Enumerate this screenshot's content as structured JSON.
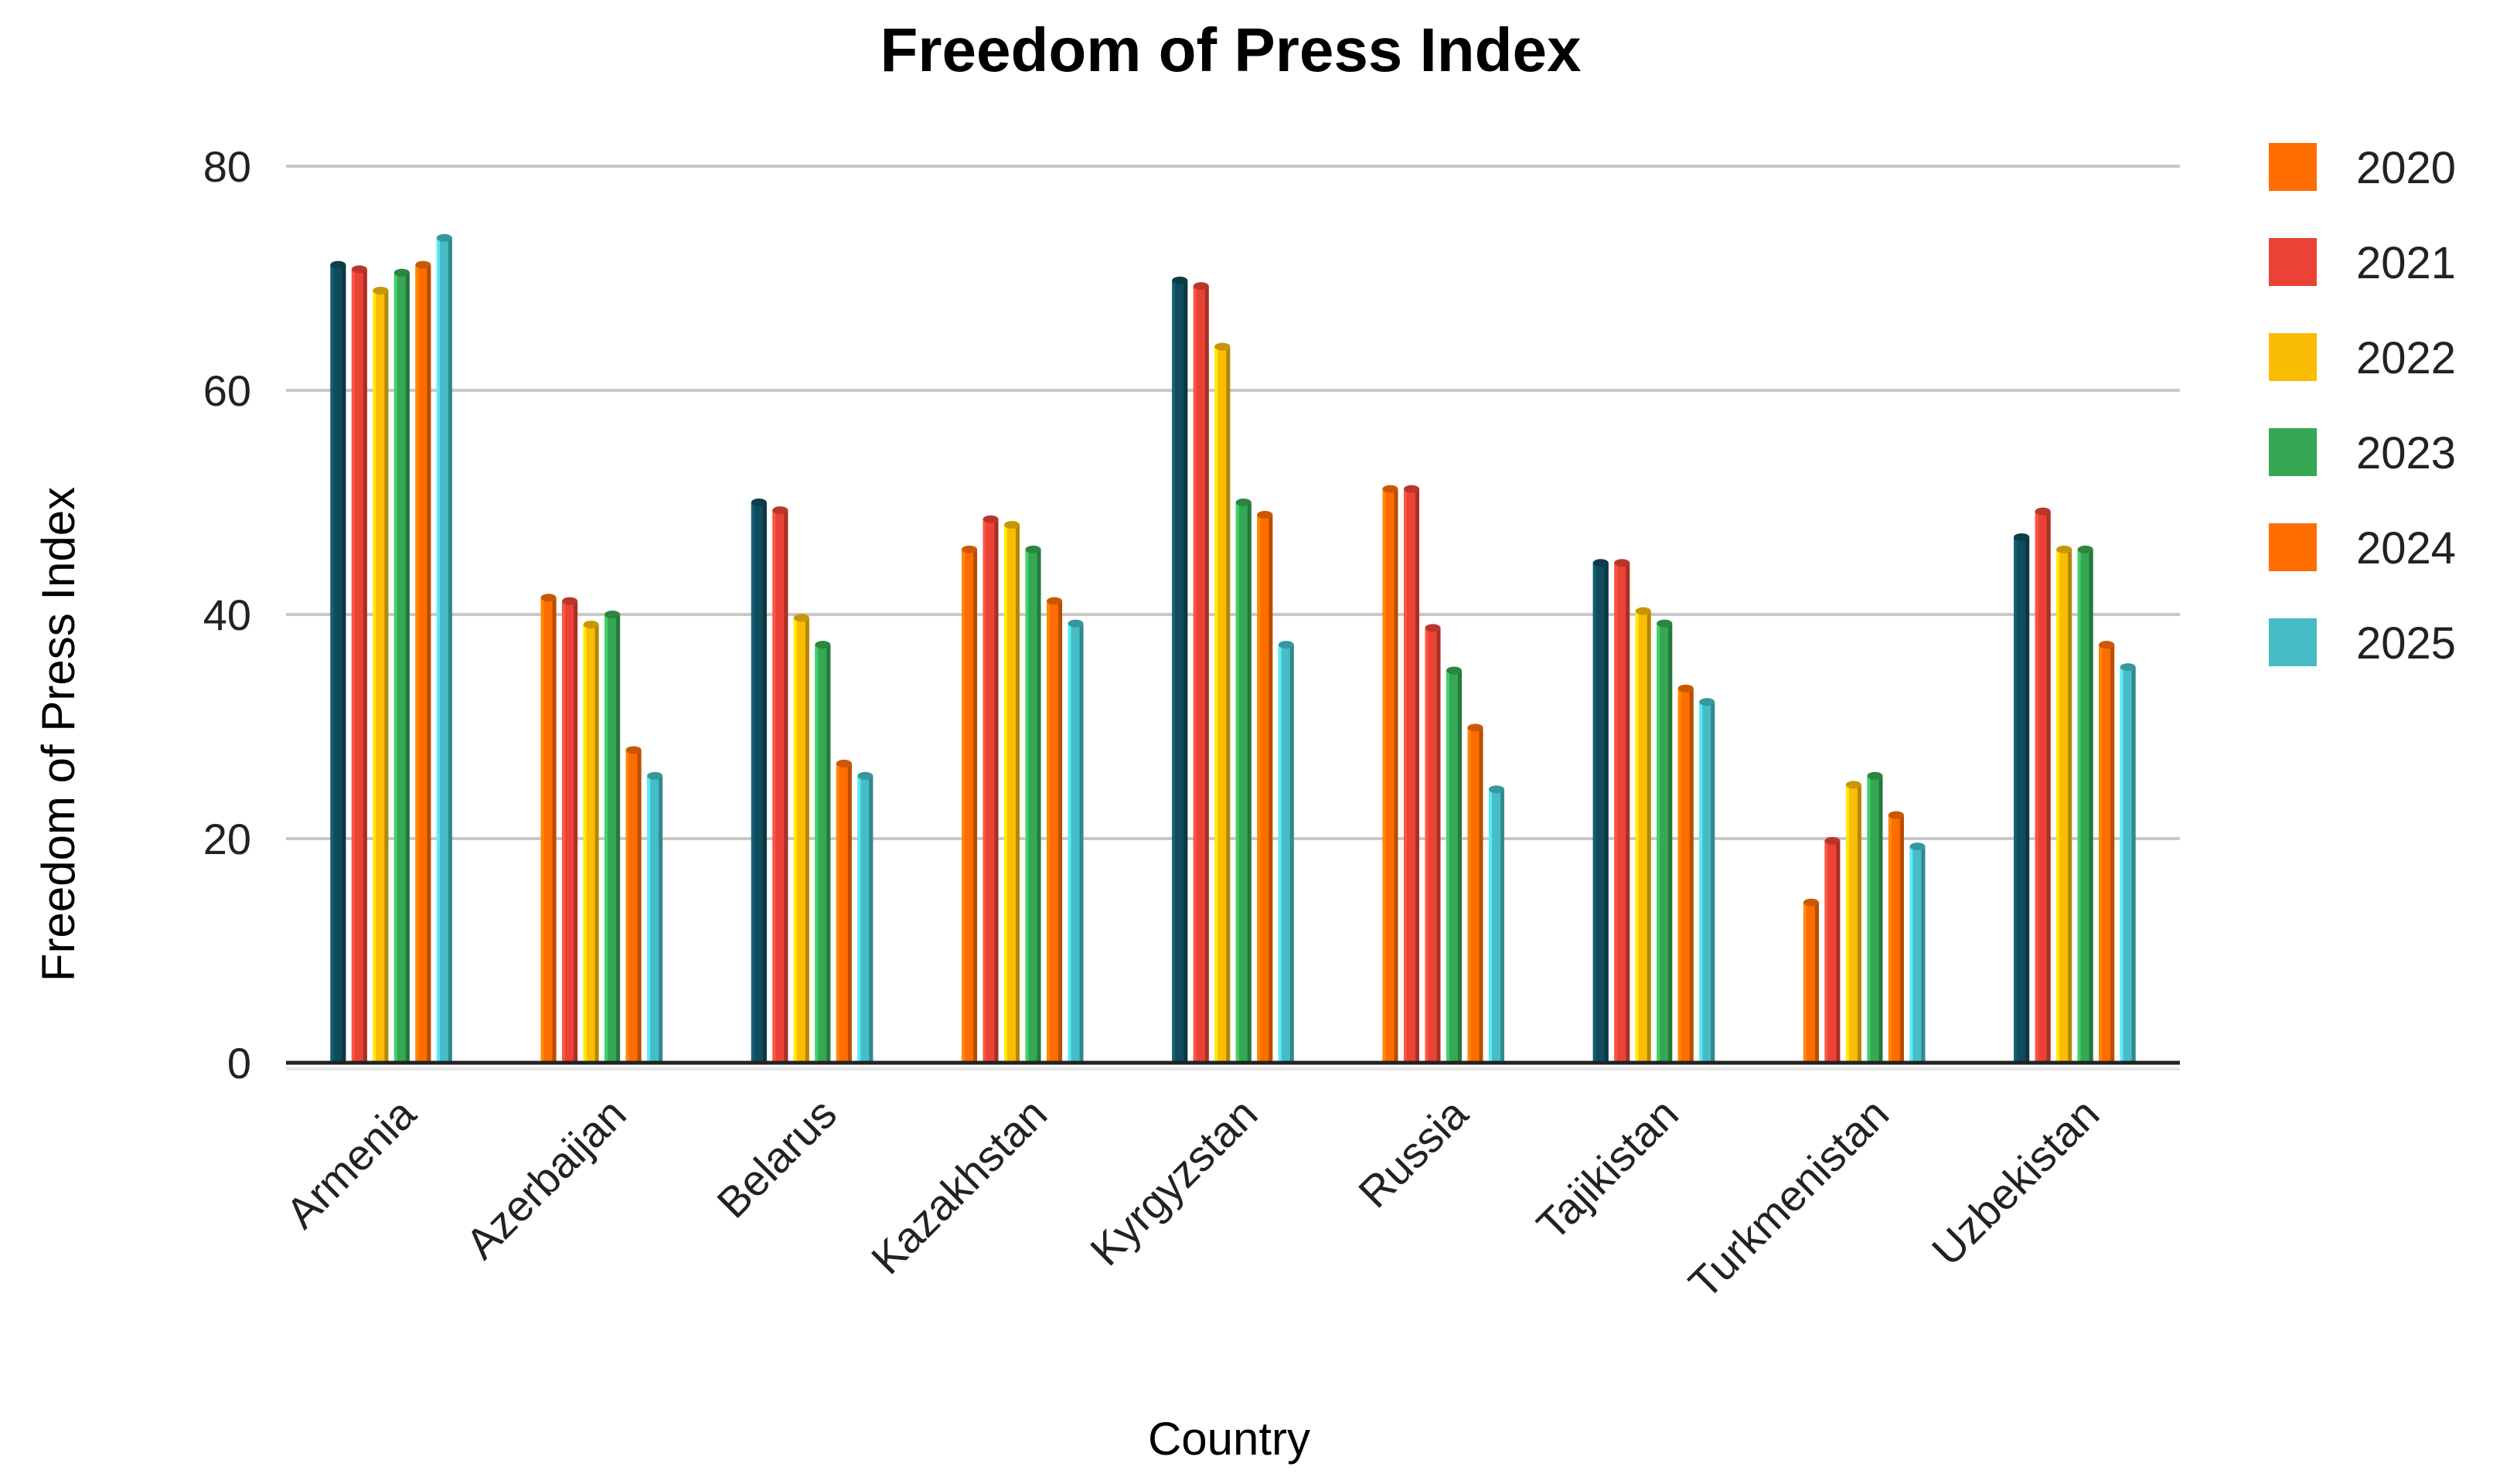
{
  "chart_data": {
    "type": "bar",
    "title": "Freedom of Press Index",
    "xlabel": "Country",
    "ylabel": "Freedom of Press Index",
    "ylim": [
      0,
      80
    ],
    "yticks": [
      "0",
      "20",
      "40",
      "60",
      "80"
    ],
    "grid": true,
    "legend_position": "right",
    "categories": [
      "Armenia",
      "Azerbaijan",
      "Belarus",
      "Kazakhstan",
      "Kyrgyzstan",
      "Russia",
      "Tajikistan",
      "Turkmenistan",
      "Uzbekistan"
    ],
    "legend": [
      {
        "label": "2020",
        "color": "#FF6D01"
      },
      {
        "label": "2021",
        "color": "#EA4335"
      },
      {
        "label": "2022",
        "color": "#FBBC04"
      },
      {
        "label": "2023",
        "color": "#34A853"
      },
      {
        "label": "2024",
        "color": "#FF6D01"
      },
      {
        "label": "2025",
        "color": "#46BDC6"
      }
    ],
    "series_colors": [
      [
        "#0F4C5C",
        "#FF6D01",
        "#0F4C5C",
        "#FF6D01",
        "#0F4C5C",
        "#FF6D01",
        "#0F4C5C",
        "#FF6D01",
        "#0F4C5C"
      ],
      [
        "#EA4335",
        "#EA4335",
        "#EA4335",
        "#EA4335",
        "#EA4335",
        "#EA4335",
        "#EA4335",
        "#EA4335",
        "#EA4335"
      ],
      [
        "#FBBC04",
        "#FBBC04",
        "#FBBC04",
        "#FBBC04",
        "#FBBC04",
        "#EA4335",
        "#FBBC04",
        "#FBBC04",
        "#FBBC04"
      ],
      [
        "#34A853",
        "#34A853",
        "#34A853",
        "#34A853",
        "#34A853",
        "#34A853",
        "#34A853",
        "#34A853",
        "#34A853"
      ],
      [
        "#FF6D01",
        "#FF6D01",
        "#FF6D01",
        "#FF6D01",
        "#FF6D01",
        "#FF6D01",
        "#FF6D01",
        "#FF6D01",
        "#FF6D01"
      ],
      [
        "#46BDC6",
        "#46BDC6",
        "#46BDC6",
        "#46BDC6",
        "#46BDC6",
        "#46BDC6",
        "#46BDC6",
        "#46BDC6",
        "#46BDC6"
      ]
    ],
    "series": [
      {
        "name": "2020",
        "values": [
          71.2,
          41.5,
          50.0,
          45.8,
          69.8,
          51.2,
          44.6,
          14.3,
          46.9
        ]
      },
      {
        "name": "2021",
        "values": [
          70.8,
          41.2,
          49.3,
          48.5,
          69.3,
          51.2,
          44.6,
          19.8,
          49.2
        ]
      },
      {
        "name": "2022",
        "values": [
          68.9,
          39.1,
          39.7,
          48.0,
          63.9,
          38.8,
          40.3,
          24.8,
          45.8
        ]
      },
      {
        "name": "2023",
        "values": [
          70.5,
          40.0,
          37.3,
          45.8,
          50.0,
          35.0,
          39.2,
          25.6,
          45.8
        ]
      },
      {
        "name": "2024",
        "values": [
          71.2,
          27.9,
          26.7,
          41.2,
          48.9,
          29.9,
          33.4,
          22.1,
          37.3
        ]
      },
      {
        "name": "2025",
        "values": [
          73.6,
          25.6,
          25.6,
          39.2,
          37.3,
          24.4,
          32.2,
          19.3,
          35.3
        ]
      }
    ]
  }
}
